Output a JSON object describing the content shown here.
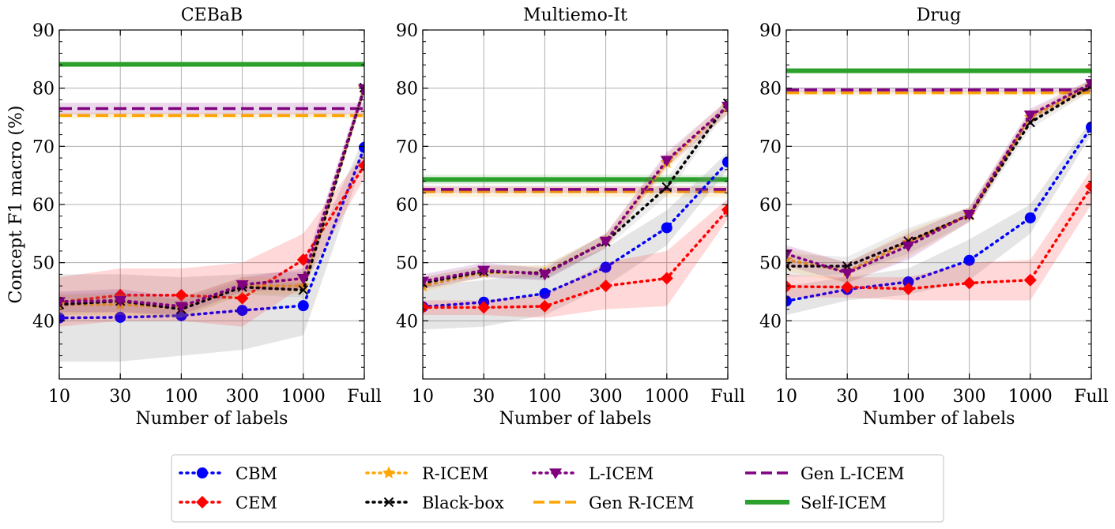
{
  "figure": {
    "ylabel": "Concept F1 macro (%)",
    "xlabel": "Number of labels"
  },
  "legend_entries": [
    {
      "label": "CBM",
      "color": "#0000ff",
      "style": "dotted",
      "marker": "circle"
    },
    {
      "label": "CEM",
      "color": "#ff0000",
      "style": "dotted",
      "marker": "diamond"
    },
    {
      "label": "R-ICEM",
      "color": "#ffa500",
      "style": "dotted",
      "marker": "star"
    },
    {
      "label": "Black-box",
      "color": "#000000",
      "style": "dotted",
      "marker": "x"
    },
    {
      "label": "L-ICEM",
      "color": "#800080",
      "style": "dotted",
      "marker": "triangle-down"
    },
    {
      "label": "Gen R-ICEM",
      "color": "#ffa500",
      "style": "dashed",
      "marker": "none"
    },
    {
      "label": "Gen L-ICEM",
      "color": "#800080",
      "style": "dashed",
      "marker": "none"
    },
    {
      "label": "Self-ICEM",
      "color": "#2ca02c",
      "style": "solid",
      "marker": "none"
    }
  ],
  "chart_data": [
    {
      "type": "line",
      "title": "CEBaB",
      "xlabel": "Number of labels",
      "ylabel": "Concept F1 macro (%)",
      "categories": [
        "10",
        "30",
        "100",
        "300",
        "1000",
        "Full"
      ],
      "ylim": [
        30,
        90
      ],
      "yticks": [
        40,
        50,
        60,
        70,
        80,
        90
      ],
      "grid": true,
      "series": [
        {
          "name": "CBM",
          "values": [
            40.5,
            40.6,
            40.9,
            41.8,
            42.6,
            69.8
          ],
          "band": [
            [
              33,
              48
            ],
            [
              33,
              48
            ],
            [
              34,
              47.5
            ],
            [
              35,
              48
            ],
            [
              37.5,
              48.5
            ],
            [
              68,
              71.5
            ]
          ]
        },
        {
          "name": "CEM",
          "values": [
            43.2,
            44.4,
            44.4,
            43.9,
            50.5,
            66.7
          ],
          "band": [
            [
              39,
              47.5
            ],
            [
              40,
              49
            ],
            [
              40,
              49
            ],
            [
              39,
              50
            ],
            [
              46,
              55
            ],
            [
              64.5,
              69
            ]
          ]
        },
        {
          "name": "R-ICEM",
          "values": [
            42.8,
            42.8,
            42.2,
            46.0,
            46.0,
            80.0
          ],
          "band": [
            [
              41,
              44.5
            ],
            [
              41,
              44.5
            ],
            [
              40.5,
              44
            ],
            [
              44.5,
              47.5
            ],
            [
              44.5,
              47.5
            ],
            [
              79,
              81
            ]
          ]
        },
        {
          "name": "Black-box",
          "values": [
            42.8,
            43.4,
            42.0,
            45.8,
            45.3,
            80.1
          ],
          "band": [
            [
              41,
              44.5
            ],
            [
              41.5,
              45
            ],
            [
              40.5,
              43.5
            ],
            [
              44.5,
              47
            ],
            [
              44,
              46.5
            ],
            [
              79,
              81
            ]
          ]
        },
        {
          "name": "L-ICEM",
          "values": [
            43.3,
            43.5,
            42.5,
            46.2,
            47.3,
            79.9
          ],
          "band": [
            [
              41.5,
              45
            ],
            [
              41.5,
              45.5
            ],
            [
              41,
              44
            ],
            [
              45,
              47.5
            ],
            [
              45.5,
              49
            ],
            [
              79,
              81
            ]
          ]
        },
        {
          "name": "Gen R-ICEM",
          "values": [
            75.3,
            75.3,
            75.3,
            75.3,
            75.3,
            75.3
          ],
          "band": [
            [
              74.8,
              75.8
            ]
          ]
        },
        {
          "name": "Gen L-ICEM",
          "values": [
            76.5,
            76.5,
            76.5,
            76.5,
            76.5,
            76.5
          ],
          "band": [
            [
              75.5,
              77.5
            ]
          ]
        },
        {
          "name": "Self-ICEM",
          "values": [
            84.1,
            84.1,
            84.1,
            84.1,
            84.1,
            84.1
          ],
          "band": [
            [
              83.7,
              84.5
            ]
          ]
        }
      ]
    },
    {
      "type": "line",
      "title": "Multiemo-It",
      "xlabel": "Number of labels",
      "categories": [
        "10",
        "30",
        "100",
        "300",
        "1000",
        "Full"
      ],
      "ylim": [
        30,
        90
      ],
      "yticks": [
        40,
        50,
        60,
        70,
        80,
        90
      ],
      "grid": true,
      "series": [
        {
          "name": "CBM",
          "values": [
            42.4,
            43.2,
            44.7,
            49.2,
            56.0,
            67.3
          ],
          "band": [
            [
              38.5,
              46
            ],
            [
              39,
              47
            ],
            [
              41,
              48.5
            ],
            [
              46,
              52.5
            ],
            [
              53,
              59
            ],
            [
              66,
              69
            ]
          ]
        },
        {
          "name": "CEM",
          "values": [
            42.3,
            42.3,
            42.5,
            46.0,
            47.3,
            59.1
          ],
          "band": [
            [
              41,
              43.5
            ],
            [
              41,
              43.5
            ],
            [
              40.5,
              44.5
            ],
            [
              42,
              50
            ],
            [
              42.5,
              52
            ],
            [
              57.5,
              61
            ]
          ]
        },
        {
          "name": "R-ICEM",
          "values": [
            46.0,
            48.3,
            48.3,
            53.7,
            67.2,
            76.8
          ],
          "band": [
            [
              45,
              47.5
            ],
            [
              47.5,
              49.5
            ],
            [
              47.5,
              49.5
            ],
            [
              52.5,
              55
            ],
            [
              66,
              68.5
            ],
            [
              75.5,
              78
            ]
          ]
        },
        {
          "name": "Black-box",
          "values": [
            46.5,
            48.5,
            48.2,
            53.6,
            63.0,
            77.4
          ],
          "band": [
            [
              45.5,
              47.5
            ],
            [
              47.5,
              49.5
            ],
            [
              47,
              49.5
            ],
            [
              52.5,
              55
            ],
            [
              61.5,
              64.5
            ],
            [
              76.5,
              78.5
            ]
          ]
        },
        {
          "name": "L-ICEM",
          "values": [
            46.8,
            48.7,
            48.0,
            53.7,
            67.6,
            76.9
          ],
          "band": [
            [
              45.5,
              48
            ],
            [
              47.5,
              50
            ],
            [
              47,
              49
            ],
            [
              52.5,
              55
            ],
            [
              66.5,
              69
            ],
            [
              75.5,
              78
            ]
          ]
        },
        {
          "name": "Gen R-ICEM",
          "values": [
            62.2,
            62.2,
            62.2,
            62.2,
            62.2,
            62.2
          ],
          "band": [
            [
              61.3,
              63.1
            ]
          ]
        },
        {
          "name": "Gen L-ICEM",
          "values": [
            62.6,
            62.6,
            62.6,
            62.6,
            62.6,
            62.6
          ],
          "band": [
            [
              62.0,
              63.2
            ]
          ]
        },
        {
          "name": "Self-ICEM",
          "values": [
            64.3,
            64.3,
            64.3,
            64.3,
            64.3,
            64.3
          ],
          "band": [
            [
              63.5,
              65.1
            ]
          ]
        }
      ]
    },
    {
      "type": "line",
      "title": "Drug",
      "xlabel": "Number of labels",
      "categories": [
        "10",
        "30",
        "100",
        "300",
        "1000",
        "Full"
      ],
      "ylim": [
        30,
        90
      ],
      "yticks": [
        40,
        50,
        60,
        70,
        80,
        90
      ],
      "grid": true,
      "series": [
        {
          "name": "CBM",
          "values": [
            43.4,
            45.4,
            46.7,
            50.4,
            57.7,
            73.3
          ],
          "band": [
            [
              41,
              46
            ],
            [
              43.5,
              47.5
            ],
            [
              44.5,
              49
            ],
            [
              47,
              54
            ],
            [
              55,
              60
            ],
            [
              72,
              74.5
            ]
          ]
        },
        {
          "name": "CEM",
          "values": [
            45.9,
            45.8,
            45.5,
            46.5,
            47.0,
            63.1
          ],
          "band": [
            [
              44,
              48
            ],
            [
              44,
              47.5
            ],
            [
              43.5,
              47.5
            ],
            [
              43.5,
              50
            ],
            [
              43.5,
              50.5
            ],
            [
              60,
              66
            ]
          ]
        },
        {
          "name": "R-ICEM",
          "values": [
            50.5,
            48.5,
            53.5,
            58.2,
            75.0,
            80.4
          ],
          "band": [
            [
              48.5,
              52.5
            ],
            [
              46.5,
              50
            ],
            [
              51,
              55.5
            ],
            [
              57,
              59.5
            ],
            [
              74,
              76
            ],
            [
              79.5,
              81.5
            ]
          ]
        },
        {
          "name": "Black-box",
          "values": [
            49.4,
            49.4,
            53.7,
            58.2,
            74.1,
            80.4
          ],
          "band": [
            [
              47.5,
              51.5
            ],
            [
              48,
              51
            ],
            [
              51.5,
              56
            ],
            [
              57,
              59.5
            ],
            [
              73,
              75.5
            ],
            [
              79.5,
              81.5
            ]
          ]
        },
        {
          "name": "L-ICEM",
          "values": [
            51.5,
            48.2,
            52.9,
            58.3,
            75.4,
            80.8
          ],
          "band": [
            [
              49.5,
              53
            ],
            [
              46.5,
              50
            ],
            [
              50.5,
              55
            ],
            [
              57,
              59.5
            ],
            [
              74.5,
              76.5
            ],
            [
              80,
              81.5
            ]
          ]
        },
        {
          "name": "Gen R-ICEM",
          "values": [
            79.2,
            79.2,
            79.2,
            79.2,
            79.2,
            79.2
          ],
          "band": [
            [
              78.8,
              79.6
            ]
          ]
        },
        {
          "name": "Gen L-ICEM",
          "values": [
            79.7,
            79.7,
            79.7,
            79.7,
            79.7,
            79.7
          ],
          "band": [
            [
              79.3,
              80.1
            ]
          ]
        },
        {
          "name": "Self-ICEM",
          "values": [
            83.0,
            83.0,
            83.0,
            83.0,
            83.0,
            83.0
          ],
          "band": [
            [
              82.7,
              83.3
            ]
          ]
        }
      ]
    }
  ]
}
